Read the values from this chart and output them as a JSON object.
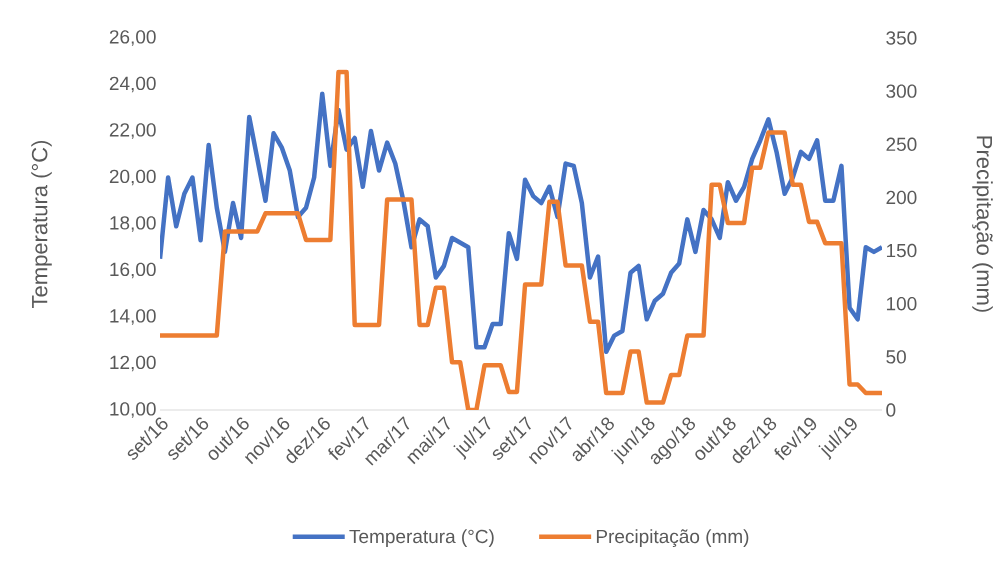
{
  "chart_data": {
    "type": "line",
    "ylabel": "Temperatura (°C)",
    "y2label": "Precipitação (mm)",
    "legend": "bottom",
    "categories": [
      "set/16",
      null,
      null,
      null,
      null,
      "set/16",
      null,
      null,
      null,
      null,
      "out/16",
      null,
      null,
      null,
      null,
      "nov/16",
      null,
      null,
      null,
      null,
      "dez/16",
      null,
      null,
      null,
      null,
      "fev/17",
      null,
      null,
      null,
      null,
      "mar/17",
      null,
      null,
      null,
      null,
      "mai/17",
      null,
      null,
      null,
      null,
      "jul/17",
      null,
      null,
      null,
      null,
      "set/17",
      null,
      null,
      null,
      null,
      "nov/17",
      null,
      null,
      null,
      null,
      "abr/18",
      null,
      null,
      null,
      null,
      "jun/18",
      null,
      null,
      null,
      null,
      "ago/18",
      null,
      null,
      null,
      null,
      "out/18",
      null,
      null,
      null,
      null,
      "dez/18",
      null,
      null,
      null,
      null,
      "fev/19",
      null,
      null,
      null,
      null,
      "jul/19",
      null,
      null,
      null,
      null
    ],
    "ylim": [
      10,
      26
    ],
    "yticks": [
      {
        "value": 10,
        "label": "10,00"
      },
      {
        "value": 12,
        "label": "12,00"
      },
      {
        "value": 14,
        "label": "14,00"
      },
      {
        "value": 16,
        "label": "16,00"
      },
      {
        "value": 18,
        "label": "18,00"
      },
      {
        "value": 20,
        "label": "20,00"
      },
      {
        "value": 22,
        "label": "22,00"
      },
      {
        "value": 24,
        "label": "24,00"
      },
      {
        "value": 26,
        "label": "26,00"
      }
    ],
    "y2lim": [
      0,
      350
    ],
    "y2ticks": [
      0,
      50,
      100,
      150,
      200,
      250,
      300,
      350
    ],
    "series": [
      {
        "name": "Temperatura (°C)",
        "color": "#4472c4",
        "values": [
          16.5,
          20.0,
          17.9,
          19.3,
          20.0,
          17.3,
          21.4,
          18.7,
          16.8,
          18.9,
          17.4,
          22.6,
          20.8,
          19.0,
          21.9,
          21.3,
          20.3,
          18.3,
          18.7,
          20.0,
          23.6,
          20.5,
          22.9,
          21.2,
          21.7,
          19.6,
          22.0,
          20.3,
          21.5,
          20.6,
          19.0,
          17.0,
          18.2,
          17.9,
          15.7,
          16.2,
          17.4,
          17.2,
          17.0,
          12.7,
          12.7,
          13.7,
          13.7,
          17.6,
          16.5,
          19.9,
          19.2,
          18.9,
          19.6,
          18.3,
          20.6,
          20.5,
          18.9,
          15.7,
          16.6,
          12.5,
          13.2,
          13.4,
          15.9,
          16.2,
          13.9,
          14.7,
          15.0,
          15.9,
          16.3,
          18.2,
          16.8,
          18.6,
          18.2,
          17.4,
          19.8,
          19.0,
          19.6,
          20.8,
          21.6,
          22.5,
          21.1,
          19.3,
          20.0,
          21.1,
          20.8,
          21.6,
          19.0,
          19.0,
          20.5,
          14.4,
          13.9,
          17.0,
          16.8,
          17.0
        ]
      },
      {
        "name": "Precipitação (mm)",
        "color": "#ed7d31",
        "axis": "y2",
        "values": [
          70,
          70,
          70,
          70,
          70,
          70,
          70,
          70,
          168,
          168,
          168,
          168,
          168,
          185,
          185,
          185,
          185,
          185,
          160,
          160,
          160,
          160,
          318,
          318,
          80,
          80,
          80,
          80,
          198,
          198,
          198,
          198,
          80,
          80,
          115,
          115,
          45,
          45,
          0,
          0,
          42,
          42,
          42,
          17,
          17,
          118,
          118,
          118,
          196,
          196,
          136,
          136,
          136,
          83,
          83,
          16,
          16,
          16,
          55,
          55,
          7,
          7,
          7,
          33,
          33,
          70,
          70,
          70,
          212,
          212,
          176,
          176,
          176,
          228,
          228,
          261,
          261,
          261,
          212,
          212,
          177,
          177,
          157,
          157,
          157,
          24,
          24,
          16,
          16,
          16
        ]
      }
    ]
  }
}
